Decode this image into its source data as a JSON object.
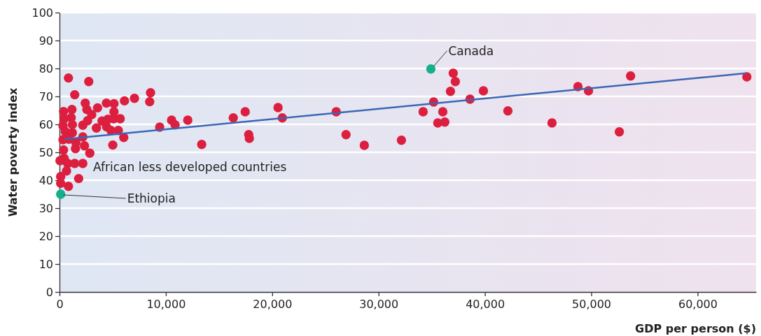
{
  "chart_data": {
    "type": "scatter",
    "xlabel": "GDP per person ($)",
    "ylabel": "Water poverty index",
    "xlim": [
      0,
      65500
    ],
    "ylim": [
      0,
      100
    ],
    "xticks": [
      0,
      {
        "value": 10000,
        "label": "10,000"
      },
      {
        "value": 20000,
        "label": "20,000"
      },
      {
        "value": 30000,
        "label": "30,000"
      },
      {
        "value": 40000,
        "label": "40,000"
      },
      {
        "value": 50000,
        "label": "50,000"
      },
      {
        "value": 60000,
        "label": "60,000"
      }
    ],
    "yticks": [
      0,
      10,
      20,
      30,
      40,
      50,
      60,
      70,
      80,
      90,
      100
    ],
    "grid": "y",
    "marker": "circle",
    "series": [
      {
        "color": "#dc1f3e",
        "x": [
          840,
          2750,
          1430,
          8560,
          8480,
          7050,
          6110,
          5120,
          4410,
          2420,
          380,
          1170,
          2570,
          3580,
          5120,
          3030,
          440,
          1100,
          2640,
          4000,
          4550,
          5090,
          5710,
          330,
          1210,
          2190,
          3470,
          4430,
          4830,
          5530,
          550,
          1210,
          6040,
          2190,
          330,
          880,
          1540,
          2350,
          1500,
          5010,
          380,
          2850,
          440,
          50,
          770,
          1430,
          2190,
          660,
          110,
          1800,
          110,
          840,
          9420,
          10540,
          10870,
          12060,
          13370,
          16340,
          17460,
          17790,
          17850,
          20550,
          20950,
          26020,
          26940,
          28660,
          32150,
          34190,
          35180,
          35570,
          36040,
          36230,
          36760,
          37020,
          37220,
          38600,
          39860,
          42160,
          46310,
          48750,
          49740,
          52640,
          53700,
          64630
        ],
        "values": [
          76.6,
          75.3,
          70.6,
          71.3,
          68.1,
          69.3,
          68.4,
          67.4,
          67.6,
          67.6,
          64.6,
          65.3,
          65.3,
          65.9,
          64.5,
          63.5,
          62,
          62.4,
          61.3,
          61.2,
          61.8,
          62,
          62,
          59.5,
          59.9,
          59.7,
          58.7,
          59.1,
          57.8,
          57.8,
          57.4,
          57,
          55.3,
          55.5,
          54.5,
          54.7,
          53.5,
          52.3,
          51.3,
          52.6,
          50.8,
          49.7,
          47.8,
          47,
          46,
          46,
          46,
          43.3,
          41.3,
          40.6,
          38.9,
          37.8,
          59,
          61.5,
          59.8,
          61.5,
          52.8,
          62.3,
          64.5,
          56.3,
          55,
          66,
          62.3,
          64.5,
          56.3,
          52.5,
          54.3,
          64.5,
          68,
          60.5,
          64.5,
          60.8,
          71.8,
          78.3,
          75.3,
          69,
          72,
          64.8,
          60.5,
          73.5,
          72,
          57.3,
          77.3,
          77
        ]
      },
      {
        "color": "#14b08a",
        "x": [
          34920,
          110
        ],
        "values": [
          79.8,
          35
        ]
      },
      {
        "type": "line",
        "color": "#3a67b5",
        "marker": "none",
        "x": [
          500,
          64600
        ],
        "values": [
          54.7,
          78.3
        ]
      }
    ],
    "annotations": [
      {
        "text": "Canada",
        "x": 34920,
        "y": 79.8
      },
      {
        "text": "Ethiopia",
        "x": 110,
        "y": 35
      },
      "African less developed countries"
    ]
  }
}
